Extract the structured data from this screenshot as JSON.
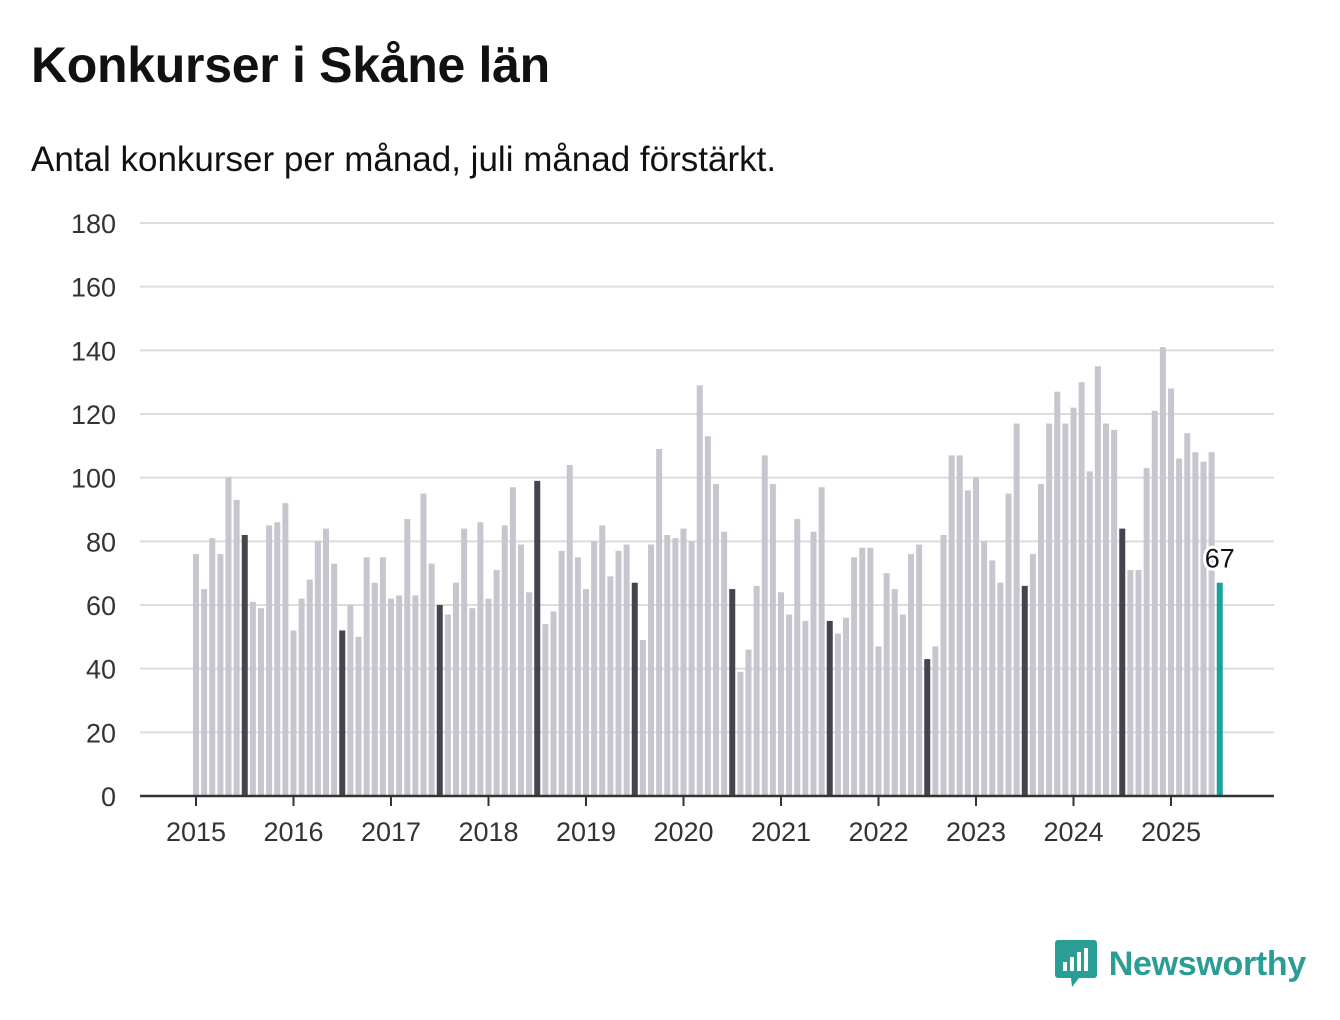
{
  "title": "Konkurser i Skåne län",
  "subtitle": "Antal konkurser per månad, juli månad förstärkt.",
  "brand": {
    "name": "Newsworthy",
    "icon": "newsworthy-bar-chart-speech-bubble-icon",
    "color": "#2a9d94"
  },
  "colors": {
    "bar": "#c6c6cf",
    "highlight": "#44444f",
    "latest": "#18a399",
    "grid": "#dcdcdc",
    "axis": "#333333"
  },
  "chart_data": {
    "type": "bar",
    "title": "Konkurser i Skåne län",
    "subtitle": "Antal konkurser per månad, juli månad förstärkt.",
    "ylim": [
      0,
      180
    ],
    "yticks": [
      0,
      20,
      40,
      60,
      80,
      100,
      120,
      140,
      160,
      180
    ],
    "xticks": [
      "2015",
      "2016",
      "2017",
      "2018",
      "2019",
      "2020",
      "2021",
      "2022",
      "2023",
      "2024",
      "2025"
    ],
    "start": "2015-01",
    "grid": true,
    "highlight_month": "juli",
    "values": [
      76,
      65,
      81,
      76,
      100,
      93,
      82,
      61,
      59,
      85,
      86,
      92,
      52,
      62,
      68,
      80,
      84,
      73,
      52,
      60,
      50,
      75,
      67,
      75,
      62,
      63,
      87,
      63,
      95,
      73,
      60,
      57,
      67,
      84,
      59,
      86,
      62,
      71,
      85,
      97,
      79,
      64,
      99,
      54,
      58,
      77,
      104,
      75,
      65,
      80,
      85,
      69,
      77,
      79,
      67,
      49,
      79,
      109,
      82,
      81,
      84,
      80,
      129,
      113,
      98,
      83,
      65,
      39,
      46,
      66,
      107,
      98,
      64,
      57,
      87,
      55,
      83,
      97,
      55,
      51,
      56,
      75,
      78,
      78,
      47,
      70,
      65,
      57,
      76,
      79,
      43,
      47,
      82,
      107,
      107,
      96,
      100,
      80,
      74,
      67,
      95,
      117,
      66,
      76,
      98,
      117,
      127,
      117,
      122,
      130,
      102,
      135,
      117,
      115,
      84,
      71,
      71,
      103,
      121,
      141,
      128,
      106,
      114,
      108,
      105,
      108,
      67
    ],
    "last_value_label": "67"
  }
}
